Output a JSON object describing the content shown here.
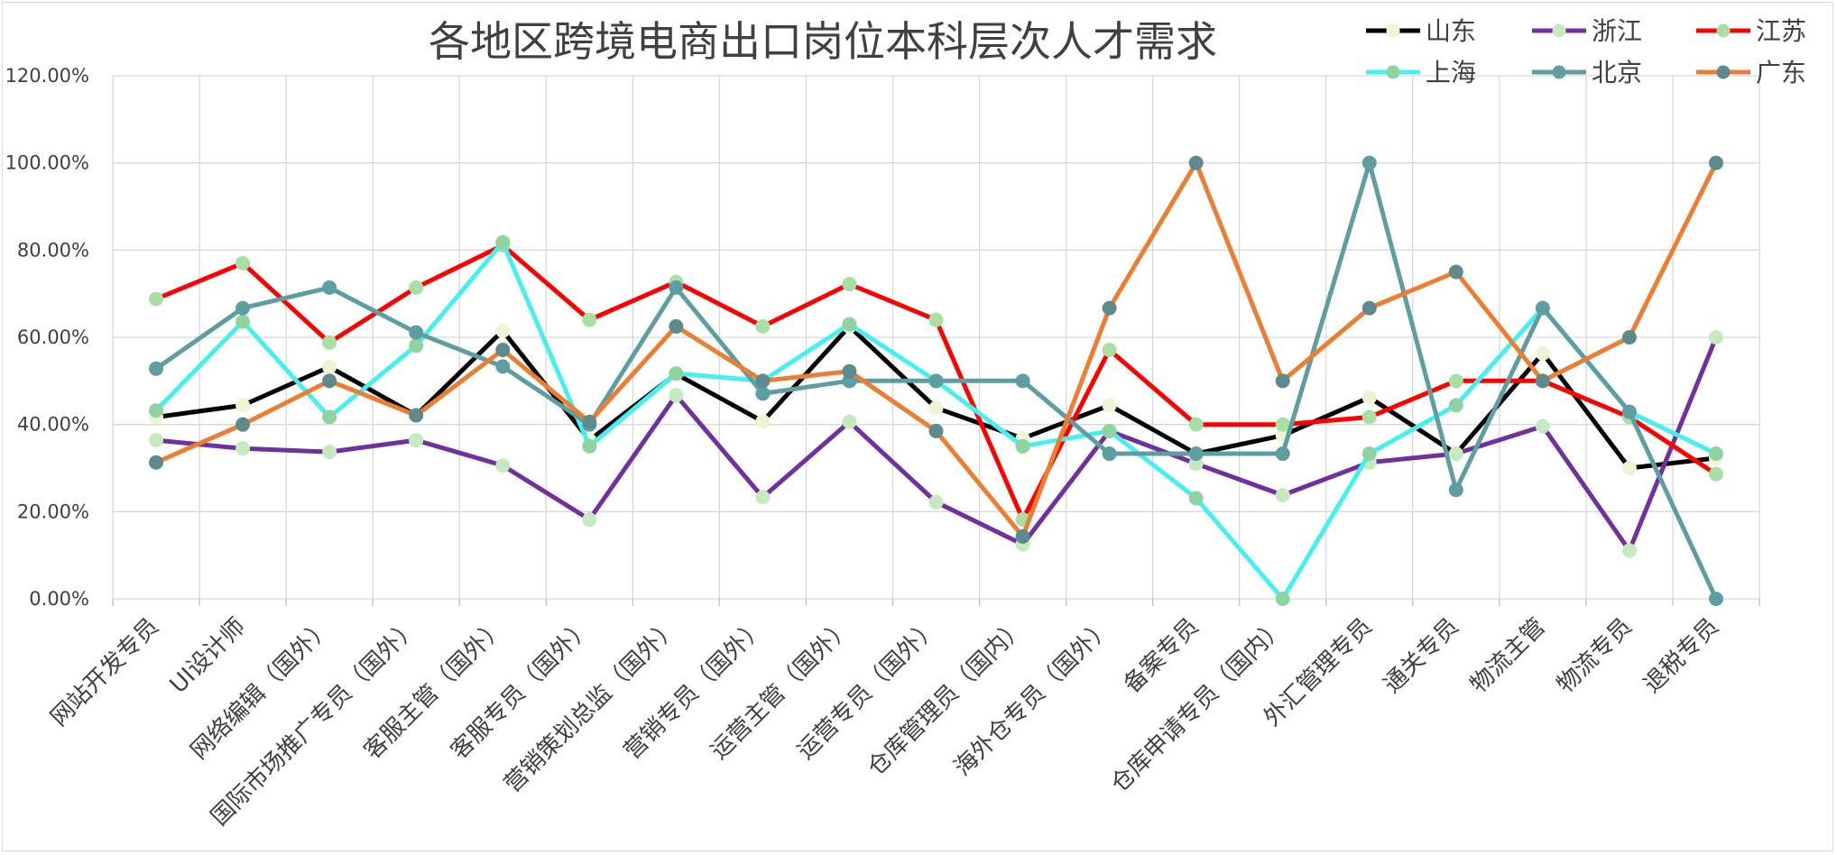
{
  "chart_data": {
    "type": "line",
    "title": "各地区跨境电商出口岗位本科层次人才需求",
    "categories": [
      "网站开发专员",
      "UI设计师",
      "网络编辑（国外）",
      "国际市场推广专员（国外）",
      "客服主管（国外）",
      "客服专员（国外）",
      "营销策划总监（国外）",
      "营销专员（国外）",
      "运营主管（国外）",
      "运营专员（国外）",
      "仓库管理员（国内）",
      "海外仓专员（国外）",
      "备案专员",
      "仓库申请专员（国内）",
      "外汇管理专员",
      "通关专员",
      "物流主管",
      "物流专员",
      "退税专员"
    ],
    "ylim": [
      0,
      1.2
    ],
    "yticks": [
      "0.00%",
      "20.00%",
      "40.00%",
      "60.00%",
      "80.00%",
      "100.00%",
      "120.00%"
    ],
    "grid": true,
    "legend_position": "top-right",
    "series": [
      {
        "name": "山东",
        "line_color": "#000000",
        "marker_color": "#eef5d5",
        "values": [
          0.417,
          0.444,
          0.532,
          0.421,
          0.615,
          0.364,
          0.516,
          0.407,
          0.625,
          0.438,
          0.368,
          0.444,
          0.333,
          0.375,
          0.462,
          0.333,
          0.563,
          0.3,
          0.323
        ]
      },
      {
        "name": "浙江",
        "line_color": "#7030a0",
        "marker_color": "#c7e9c0",
        "values": [
          0.364,
          0.345,
          0.337,
          0.364,
          0.306,
          0.182,
          0.467,
          0.233,
          0.406,
          0.222,
          0.125,
          0.385,
          0.31,
          0.238,
          0.313,
          0.333,
          0.396,
          0.111,
          0.6
        ]
      },
      {
        "name": "江苏",
        "line_color": "#ff0000",
        "marker_color": "#a9dfa4",
        "values": [
          0.688,
          0.77,
          0.588,
          0.714,
          0.811,
          0.64,
          0.727,
          0.625,
          0.722,
          0.64,
          0.182,
          0.571,
          0.4,
          0.4,
          0.417,
          0.5,
          0.5,
          0.417,
          0.286
        ]
      },
      {
        "name": "上海",
        "line_color": "#46f0f0",
        "marker_color": "#8fd3a0",
        "values": [
          0.432,
          0.636,
          0.417,
          0.581,
          0.818,
          0.35,
          0.517,
          0.5,
          0.63,
          0.5,
          0.35,
          0.385,
          0.231,
          0.0,
          0.333,
          0.444,
          0.667,
          0.429,
          0.333
        ]
      },
      {
        "name": "北京",
        "line_color": "#5f9ea0",
        "marker_color": "#5f9ea0",
        "values": [
          0.528,
          0.667,
          0.714,
          0.611,
          0.533,
          0.4,
          0.714,
          0.471,
          0.5,
          0.5,
          0.5,
          0.333,
          0.333,
          0.333,
          1.0,
          0.25,
          0.667,
          0.429,
          0.0
        ]
      },
      {
        "name": "广东",
        "line_color": "#ed7d31",
        "marker_color": "#5f8a8b",
        "values": [
          0.313,
          0.4,
          0.5,
          0.421,
          0.571,
          0.406,
          0.625,
          0.5,
          0.522,
          0.385,
          0.143,
          0.667,
          1.0,
          0.5,
          0.667,
          0.75,
          0.5,
          0.6,
          1.0
        ]
      }
    ]
  }
}
